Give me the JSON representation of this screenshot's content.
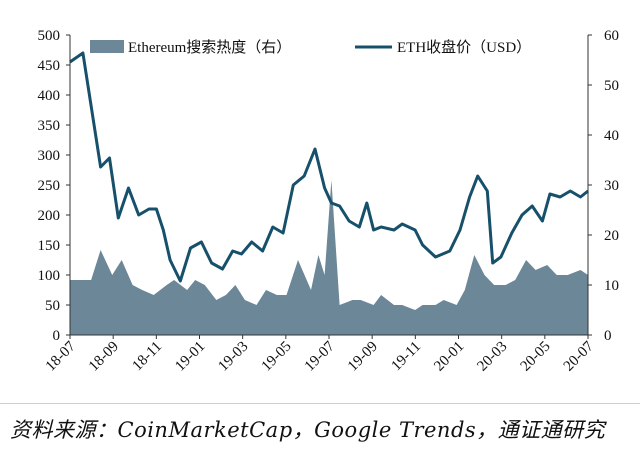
{
  "title": "",
  "source": "资料来源：CoinMarketCap，Google Trends，通证通研究",
  "chart_data": {
    "type": "area+line",
    "x_labels": [
      "18-07",
      "18-09",
      "18-11",
      "19-01",
      "19-03",
      "19-05",
      "19-07",
      "19-09",
      "19-11",
      "20-01",
      "20-03",
      "20-05",
      "20-07"
    ],
    "x_start": "2018-07-01",
    "x_end": "2020-07-31",
    "y_left": {
      "lim": [
        0,
        500
      ],
      "ticks": [
        0,
        50,
        100,
        150,
        200,
        250,
        300,
        350,
        400,
        450,
        500
      ]
    },
    "y_right": {
      "lim": [
        0,
        60
      ],
      "ticks": [
        0,
        10,
        20,
        30,
        40,
        50,
        60
      ]
    },
    "legend": {
      "placement": "top"
    },
    "colors": {
      "area": "#6b8798",
      "line": "#17506b"
    },
    "series": [
      {
        "name": "Ethereum搜索热度（右）",
        "kind": "area",
        "axis": "right",
        "x": [
          "2018-07-01",
          "2018-08-01",
          "2018-08-15",
          "2018-09-01",
          "2018-09-15",
          "2018-10-01",
          "2018-10-15",
          "2018-11-01",
          "2018-11-20",
          "2018-12-01",
          "2018-12-20",
          "2019-01-01",
          "2019-01-15",
          "2019-02-01",
          "2019-02-15",
          "2019-03-01",
          "2019-03-15",
          "2019-04-01",
          "2019-04-15",
          "2019-05-01",
          "2019-05-15",
          "2019-06-01",
          "2019-06-20",
          "2019-07-01",
          "2019-07-10",
          "2019-07-20",
          "2019-08-01",
          "2019-08-20",
          "2019-09-01",
          "2019-09-20",
          "2019-10-01",
          "2019-10-20",
          "2019-11-01",
          "2019-11-20",
          "2019-12-01",
          "2019-12-20",
          "2020-01-01",
          "2020-01-20",
          "2020-02-01",
          "2020-02-15",
          "2020-03-01",
          "2020-03-15",
          "2020-04-01",
          "2020-04-15",
          "2020-05-01",
          "2020-05-15",
          "2020-06-01",
          "2020-06-15",
          "2020-07-01",
          "2020-07-20",
          "2020-07-31"
        ],
        "values": [
          11,
          11,
          17,
          12,
          15,
          10,
          9,
          8,
          10,
          11,
          9,
          11,
          10,
          7,
          8,
          10,
          7,
          6,
          9,
          8,
          8,
          15,
          9,
          16,
          12,
          31,
          6,
          7,
          7,
          6,
          8,
          6,
          6,
          5,
          6,
          6,
          7,
          6,
          9,
          16,
          12,
          10,
          10,
          11,
          15,
          13,
          14,
          12,
          12,
          13,
          12
        ]
      },
      {
        "name": "ETH收盘价（USD）",
        "kind": "line",
        "axis": "left",
        "x": [
          "2018-07-01",
          "2018-07-20",
          "2018-08-15",
          "2018-08-28",
          "2018-09-10",
          "2018-09-25",
          "2018-10-10",
          "2018-10-25",
          "2018-11-05",
          "2018-11-15",
          "2018-11-25",
          "2018-12-10",
          "2018-12-25",
          "2019-01-10",
          "2019-01-25",
          "2019-02-10",
          "2019-02-25",
          "2019-03-10",
          "2019-03-25",
          "2019-04-10",
          "2019-04-25",
          "2019-05-10",
          "2019-05-25",
          "2019-06-10",
          "2019-06-26",
          "2019-07-10",
          "2019-07-20",
          "2019-08-01",
          "2019-08-15",
          "2019-08-30",
          "2019-09-10",
          "2019-09-20",
          "2019-10-01",
          "2019-10-20",
          "2019-11-01",
          "2019-11-20",
          "2019-12-01",
          "2019-12-20",
          "2020-01-10",
          "2020-01-25",
          "2020-02-08",
          "2020-02-20",
          "2020-03-05",
          "2020-03-13",
          "2020-03-25",
          "2020-04-10",
          "2020-04-25",
          "2020-05-10",
          "2020-05-25",
          "2020-06-05",
          "2020-06-20",
          "2020-07-05",
          "2020-07-20",
          "2020-07-31"
        ],
        "values": [
          455,
          470,
          280,
          295,
          195,
          245,
          200,
          210,
          210,
          175,
          125,
          90,
          145,
          155,
          120,
          110,
          140,
          135,
          155,
          140,
          180,
          170,
          250,
          265,
          310,
          245,
          220,
          215,
          190,
          180,
          220,
          175,
          180,
          175,
          185,
          175,
          150,
          130,
          140,
          175,
          230,
          265,
          240,
          120,
          130,
          170,
          200,
          215,
          190,
          235,
          230,
          240,
          230,
          240
        ]
      }
    ]
  }
}
